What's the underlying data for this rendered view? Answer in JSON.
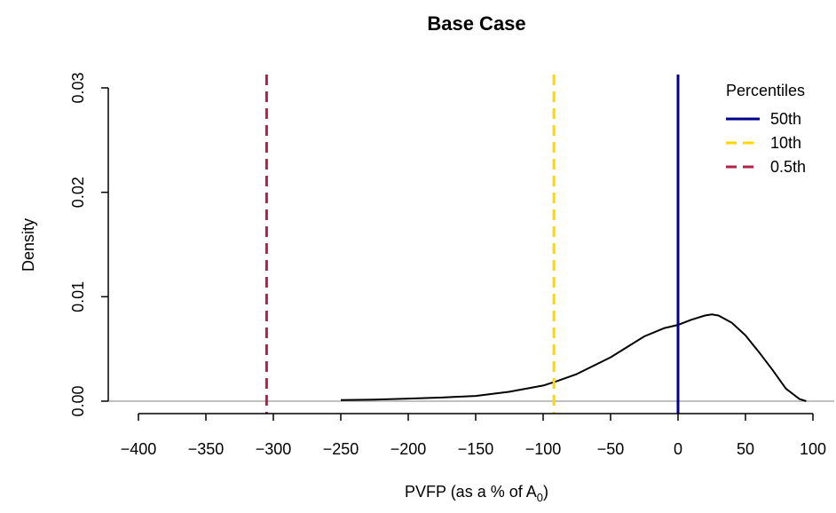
{
  "chart_data": {
    "type": "line",
    "title": "Base Case",
    "xlabel_main": "PVFP (as a % of A",
    "xlabel_sub": "0",
    "xlabel_close": ")",
    "ylabel": "Density",
    "xlim": [
      -400,
      100
    ],
    "ylim": [
      0,
      0.03
    ],
    "x_ticks": [
      -400,
      -350,
      -300,
      -250,
      -200,
      -150,
      -100,
      -50,
      0,
      50,
      100
    ],
    "x_tick_labels": [
      "-400",
      "-350",
      "-300",
      "-250",
      "-200",
      "-150",
      "-100",
      "-50",
      "0",
      "50",
      "100"
    ],
    "y_ticks": [
      0,
      0.01,
      0.02,
      0.03
    ],
    "y_tick_labels": [
      "0.00",
      "0.01",
      "0.02",
      "0.03"
    ],
    "grid": false,
    "series": [
      {
        "color": "#000000",
        "x": [
          -250,
          -225,
          -200,
          -175,
          -150,
          -125,
          -100,
          -90,
          -75,
          -50,
          -25,
          -10,
          0,
          10,
          20,
          25,
          30,
          40,
          50,
          60,
          70,
          80,
          90,
          95
        ],
        "y": [
          0.0001,
          0.00015,
          0.00025,
          0.00035,
          0.0005,
          0.0009,
          0.0015,
          0.0019,
          0.0026,
          0.0042,
          0.0062,
          0.007,
          0.0073,
          0.0078,
          0.0082,
          0.0083,
          0.0082,
          0.0075,
          0.0063,
          0.0047,
          0.003,
          0.0012,
          0.0002,
          0.0
        ]
      }
    ],
    "reference_lines": [
      {
        "name": "50th",
        "x": 0,
        "color": "#00008b",
        "dash": "solid"
      },
      {
        "name": "10th",
        "x": -92,
        "color": "#ffd700",
        "dash": "dashed"
      },
      {
        "name": "0.5th",
        "x": -305,
        "color": "#b22246",
        "dash": "dashed"
      }
    ],
    "legend_title": "Percentiles",
    "legend_position": "top-right"
  }
}
